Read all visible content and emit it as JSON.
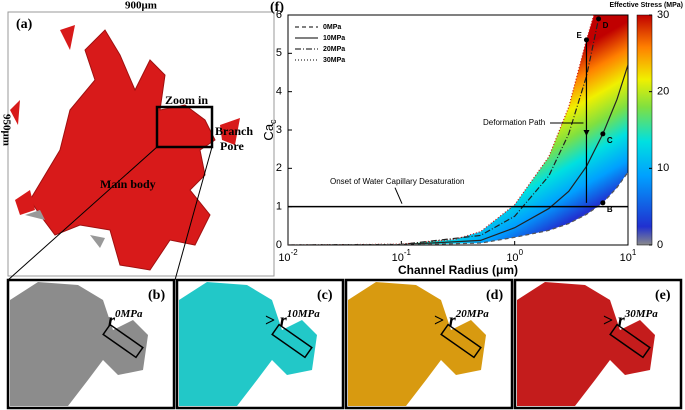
{
  "panel_a": {
    "label": "(a)",
    "width_label": "900μm",
    "height_label": "950μm",
    "zoom_label": "Zoom in",
    "branch_label": [
      "Branch",
      "Pore"
    ],
    "body_label": "Main body"
  },
  "bottom_panels": [
    {
      "label": "(b)",
      "symbol": "r",
      "superscript": "0MPa"
    },
    {
      "label": "(c)",
      "relation": ">",
      "symbol": "r",
      "superscript": "10MPa"
    },
    {
      "label": "(d)",
      "relation": ">",
      "symbol": "r",
      "superscript": "20MPa"
    },
    {
      "label": "(e)",
      "relation": ">",
      "symbol": "r",
      "superscript": "30MPa"
    }
  ],
  "chart_data": {
    "type": "line",
    "panel_label": "(f)",
    "x_label": "Channel Radius (μm)",
    "y_label": "Ca",
    "y_label_subscript": "c",
    "log_x": true,
    "xlim": [
      0.01,
      10
    ],
    "xticks": [
      {
        "value": 0.01,
        "label": "10",
        "exponent": "-2"
      },
      {
        "value": 0.1,
        "label": "10",
        "exponent": "-1"
      },
      {
        "value": 1,
        "label": "10",
        "exponent": "0"
      },
      {
        "value": 10,
        "label": "10",
        "exponent": "1"
      }
    ],
    "ylim": [
      0,
      6
    ],
    "yticks": [
      0,
      1,
      2,
      3,
      4,
      5,
      6
    ],
    "series": [
      {
        "name": "30MPa",
        "color": "#d01010",
        "dash": "1,2",
        "x": [
          0.01,
          0.1,
          0.3,
          0.5,
          1,
          2,
          3,
          4.3,
          5
        ],
        "values": [
          0,
          0.02,
          0.15,
          0.35,
          1.05,
          2.3,
          3.6,
          5.35,
          6
        ]
      },
      {
        "name": "20MPa",
        "color": "#222222",
        "dash": "6,2,1,2",
        "x": [
          0.01,
          0.1,
          0.5,
          1,
          2,
          3,
          4.3,
          5.5
        ],
        "values": [
          0,
          0.015,
          0.25,
          0.75,
          1.8,
          2.9,
          4.4,
          5.9
        ]
      },
      {
        "name": "10MPa",
        "color": "#222222",
        "dash": "none",
        "x": [
          0.01,
          0.1,
          0.5,
          1,
          2,
          3,
          4.3,
          6,
          8,
          10
        ],
        "values": [
          0,
          0.01,
          0.12,
          0.45,
          0.95,
          1.4,
          2.05,
          2.9,
          3.8,
          4.7
        ]
      },
      {
        "name": "0MPa",
        "color": "#555555",
        "dash": "4,3",
        "x": [
          0.01,
          0.1,
          0.5,
          1,
          2,
          3,
          4.3,
          6,
          8,
          10
        ],
        "values": [
          0,
          0.005,
          0.05,
          0.2,
          0.38,
          0.56,
          0.8,
          1.1,
          1.5,
          1.9
        ]
      }
    ],
    "point_labels": [
      "E",
      "D",
      "C",
      "B"
    ],
    "point_index": 7,
    "path_label": "Deformation Path",
    "threshold": {
      "value": 1,
      "label": "Onset of Water Capillary Desaturation"
    },
    "colorbar": {
      "label": "Effective Stress (MPa)",
      "lim": [
        0,
        30
      ],
      "ticks": [
        0,
        10,
        20,
        30
      ]
    }
  }
}
